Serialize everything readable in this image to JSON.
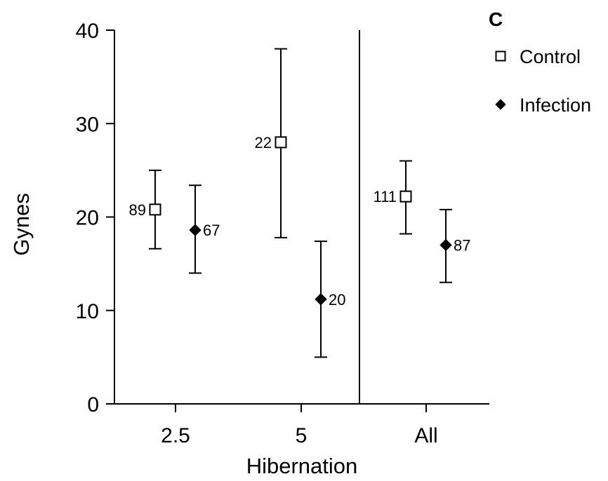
{
  "chart_data": {
    "type": "scatter",
    "panel_label": "C",
    "xlabel": "Hibernation",
    "ylabel": "Gynes",
    "categories": [
      "2.5",
      "5",
      "All"
    ],
    "ylim": [
      0,
      40
    ],
    "yticks": [
      0,
      10,
      20,
      30,
      40
    ],
    "grid": false,
    "legend_position": "top-right",
    "separator_between": [
      "5",
      "All"
    ],
    "series": [
      {
        "name": "Control",
        "marker": "open-square",
        "color": "#000000",
        "points": [
          {
            "x": "2.5",
            "y": 20.8,
            "lower": 16.6,
            "upper": 25.0,
            "n": "89"
          },
          {
            "x": "5",
            "y": 28.0,
            "lower": 17.8,
            "upper": 38.0,
            "n": "22"
          },
          {
            "x": "All",
            "y": 22.2,
            "lower": 18.2,
            "upper": 26.0,
            "n": "111"
          }
        ]
      },
      {
        "name": "Infection",
        "marker": "filled-diamond",
        "color": "#000000",
        "points": [
          {
            "x": "2.5",
            "y": 18.6,
            "lower": 14.0,
            "upper": 23.4,
            "n": "67"
          },
          {
            "x": "5",
            "y": 11.2,
            "lower": 5.0,
            "upper": 17.4,
            "n": "20"
          },
          {
            "x": "All",
            "y": 17.0,
            "lower": 13.0,
            "upper": 20.8,
            "n": "87"
          }
        ]
      }
    ]
  }
}
